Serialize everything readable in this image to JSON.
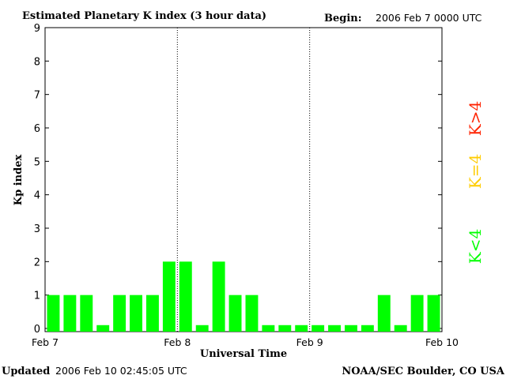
{
  "header": {
    "title": "Estimated Planetary K index (3 hour data)",
    "begin_label": "Begin:",
    "begin_value": "2006 Feb 7 0000 UTC"
  },
  "footer": {
    "updated_label": "Updated",
    "updated_value": "2006 Feb 10 02:45:05 UTC",
    "source": "NOAA/SEC Boulder, CO USA"
  },
  "legend": {
    "items": [
      {
        "label": "K<4",
        "color": "#00ff00"
      },
      {
        "label": "K=4",
        "color": "#ffcc00"
      },
      {
        "label": "K>4",
        "color": "#ff2200"
      }
    ]
  },
  "chart_data": {
    "type": "bar",
    "title": "Estimated Planetary K index (3 hour data)",
    "xlabel": "Universal Time",
    "ylabel": "Kp index",
    "ylim": [
      0,
      9
    ],
    "yticks": [
      "0",
      "1",
      "2",
      "3",
      "4",
      "5",
      "6",
      "7",
      "8",
      "9"
    ],
    "xticks": [
      "Feb 7",
      "Feb 8",
      "Feb 9",
      "Feb 10"
    ],
    "day_separators_dotted": true,
    "grid": false,
    "bar_color": "#00ff00",
    "values": [
      1,
      1,
      1,
      0.1,
      1,
      1,
      1,
      2,
      2,
      0.1,
      2,
      1,
      1,
      0.1,
      0.1,
      0.1,
      0.1,
      0.1,
      0.1,
      0.1,
      1,
      0.1,
      1,
      1
    ]
  }
}
